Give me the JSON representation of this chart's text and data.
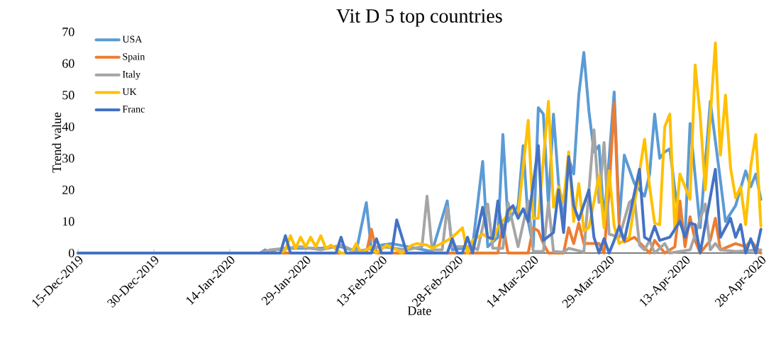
{
  "chart_data": {
    "type": "line",
    "title": "Vit D 5 top countries",
    "xlabel": "Date",
    "ylabel": "Trend value",
    "xlim": [
      "2019-12-15",
      "2020-04-28"
    ],
    "xticks": [
      {
        "value": "2019-12-15",
        "label": "15-Dec-2019"
      },
      {
        "value": "2019-12-30",
        "label": "30-Dec-2019"
      },
      {
        "value": "2020-01-14",
        "label": "14-Jan-2020"
      },
      {
        "value": "2020-01-29",
        "label": "29-Jan-2020"
      },
      {
        "value": "2020-02-13",
        "label": "13-Feb-2020"
      },
      {
        "value": "2020-02-28",
        "label": "28-Feb-2020"
      },
      {
        "value": "2020-03-14",
        "label": "14-Mar-2020"
      },
      {
        "value": "2020-03-29",
        "label": "29-Mar-2020"
      },
      {
        "value": "2020-04-13",
        "label": "13-Apr-2020"
      },
      {
        "value": "2020-04-28",
        "label": "28-Apr-2020"
      }
    ],
    "ylim": [
      0,
      70
    ],
    "yticks": [
      0,
      10,
      20,
      30,
      40,
      50,
      60,
      70
    ],
    "legend": "top left",
    "series": [
      {
        "name": "USA",
        "color": "#5b9bd5",
        "x": [
          "2019-12-15",
          "2020-01-20",
          "2020-01-21",
          "2020-01-22",
          "2020-01-23",
          "2020-01-25",
          "2020-01-29",
          "2020-02-01",
          "2020-02-05",
          "2020-02-08",
          "2020-02-10",
          "2020-02-11",
          "2020-02-13",
          "2020-02-15",
          "2020-02-23",
          "2020-02-26",
          "2020-02-27",
          "2020-03-02",
          "2020-03-04",
          "2020-03-05",
          "2020-03-07",
          "2020-03-08",
          "2020-03-09",
          "2020-03-11",
          "2020-03-12",
          "2020-03-13",
          "2020-03-14",
          "2020-03-15",
          "2020-03-16",
          "2020-03-17",
          "2020-03-18",
          "2020-03-19",
          "2020-03-20",
          "2020-03-21",
          "2020-03-22",
          "2020-03-23",
          "2020-03-24",
          "2020-03-25",
          "2020-03-26",
          "2020-03-27",
          "2020-03-28",
          "2020-03-29",
          "2020-03-30",
          "2020-03-31",
          "2020-04-01",
          "2020-04-03",
          "2020-04-05",
          "2020-04-06",
          "2020-04-07",
          "2020-04-08",
          "2020-04-09",
          "2020-04-10",
          "2020-04-11",
          "2020-04-12",
          "2020-04-13",
          "2020-04-14",
          "2020-04-16",
          "2020-04-18",
          "2020-04-20",
          "2020-04-21",
          "2020-04-23",
          "2020-04-25",
          "2020-04-26",
          "2020-04-27",
          "2020-04-28"
        ],
        "values": [
          0,
          0,
          1,
          0,
          1,
          1.5,
          1.5,
          1.5,
          2,
          0.5,
          16,
          1,
          2.5,
          3,
          0.5,
          16.5,
          1,
          2,
          29,
          2,
          5,
          37.5,
          10,
          15,
          34,
          10,
          2,
          46,
          44,
          15,
          44,
          22,
          10,
          30,
          25,
          50,
          63.5,
          45,
          32,
          34,
          10,
          30,
          51,
          10,
          31,
          22,
          18,
          25,
          44,
          30,
          32,
          33,
          20,
          10,
          5,
          41,
          8,
          48,
          23,
          10,
          15,
          26,
          21,
          25,
          17
        ]
      },
      {
        "name": "Spain",
        "color": "#ed7d31",
        "x": [
          "2019-12-15",
          "2020-02-10",
          "2020-02-11",
          "2020-02-12",
          "2020-03-07",
          "2020-03-08",
          "2020-03-09",
          "2020-03-13",
          "2020-03-14",
          "2020-03-15",
          "2020-03-16",
          "2020-03-17",
          "2020-03-20",
          "2020-03-21",
          "2020-03-22",
          "2020-03-23",
          "2020-03-24",
          "2020-03-27",
          "2020-03-28",
          "2020-03-29",
          "2020-03-30",
          "2020-03-31",
          "2020-04-01",
          "2020-04-03",
          "2020-04-06",
          "2020-04-07",
          "2020-04-09",
          "2020-04-11",
          "2020-04-12",
          "2020-04-13",
          "2020-04-14",
          "2020-04-15",
          "2020-04-16",
          "2020-04-18",
          "2020-04-19",
          "2020-04-20",
          "2020-04-23",
          "2020-04-25",
          "2020-04-26",
          "2020-04-28"
        ],
        "values": [
          0,
          0,
          7.5,
          0,
          0,
          9,
          0,
          0,
          8,
          7,
          3,
          0,
          0,
          8,
          3,
          9.5,
          3,
          3,
          0,
          20,
          47.5,
          8,
          3.5,
          5,
          0,
          4,
          0,
          2,
          16.5,
          2,
          11.5,
          4,
          0,
          4,
          11,
          1,
          3,
          2,
          4,
          0
        ]
      },
      {
        "name": "Italy",
        "color": "#a5a5a5",
        "x": [
          "2019-12-15",
          "2020-01-20",
          "2020-01-22",
          "2020-01-25",
          "2020-01-28",
          "2020-02-01",
          "2020-02-05",
          "2020-02-08",
          "2020-02-13",
          "2020-02-18",
          "2020-02-21",
          "2020-02-22",
          "2020-02-23",
          "2020-02-25",
          "2020-02-26",
          "2020-02-27",
          "2020-03-02",
          "2020-03-03",
          "2020-03-05",
          "2020-03-06",
          "2020-03-08",
          "2020-03-09",
          "2020-03-11",
          "2020-03-13",
          "2020-03-14",
          "2020-03-16",
          "2020-03-17",
          "2020-03-18",
          "2020-03-20",
          "2020-03-21",
          "2020-03-24",
          "2020-03-26",
          "2020-03-27",
          "2020-03-28",
          "2020-03-29",
          "2020-03-31",
          "2020-04-02",
          "2020-04-03",
          "2020-04-04",
          "2020-04-05",
          "2020-04-06",
          "2020-04-07",
          "2020-04-09",
          "2020-04-10",
          "2020-04-14",
          "2020-04-17",
          "2020-04-18",
          "2020-04-19",
          "2020-04-20",
          "2020-04-23",
          "2020-04-28"
        ],
        "values": [
          0,
          0,
          1,
          1.5,
          2,
          1,
          2.5,
          0.5,
          2,
          1,
          2,
          18,
          1,
          1,
          14.5,
          2,
          2,
          1,
          15.5,
          1.5,
          1.5,
          16,
          2,
          16.5,
          0.5,
          0.5,
          16,
          0.5,
          0.3,
          1.5,
          0.3,
          39,
          16,
          35,
          6,
          5,
          16,
          17.5,
          2.5,
          1,
          4,
          0,
          3,
          0,
          1,
          15.5,
          1,
          3,
          1,
          0.5,
          1
        ]
      },
      {
        "name": "UK",
        "color": "#ffc000",
        "x": [
          "2019-12-15",
          "2020-01-24",
          "2020-01-25",
          "2020-01-26",
          "2020-01-27",
          "2020-01-28",
          "2020-01-29",
          "2020-01-30",
          "2020-01-31",
          "2020-02-01",
          "2020-02-02",
          "2020-02-03",
          "2020-02-05",
          "2020-02-07",
          "2020-02-08",
          "2020-02-09",
          "2020-02-11",
          "2020-02-12",
          "2020-02-14",
          "2020-02-16",
          "2020-02-17",
          "2020-02-19",
          "2020-02-20",
          "2020-02-22",
          "2020-02-23",
          "2020-02-26",
          "2020-02-27",
          "2020-02-29",
          "2020-03-01",
          "2020-03-02",
          "2020-03-04",
          "2020-03-06",
          "2020-03-07",
          "2020-03-10",
          "2020-03-11",
          "2020-03-13",
          "2020-03-14",
          "2020-03-15",
          "2020-03-17",
          "2020-03-18",
          "2020-03-19",
          "2020-03-20",
          "2020-03-21",
          "2020-03-22",
          "2020-03-23",
          "2020-03-24",
          "2020-03-25",
          "2020-03-27",
          "2020-03-28",
          "2020-03-29",
          "2020-03-30",
          "2020-03-31",
          "2020-04-02",
          "2020-04-05",
          "2020-04-06",
          "2020-04-07",
          "2020-04-08",
          "2020-04-09",
          "2020-04-10",
          "2020-04-11",
          "2020-04-12",
          "2020-04-14",
          "2020-04-15",
          "2020-04-16",
          "2020-04-17",
          "2020-04-19",
          "2020-04-20",
          "2020-04-21",
          "2020-04-22",
          "2020-04-23",
          "2020-04-24",
          "2020-04-25",
          "2020-04-26",
          "2020-04-27",
          "2020-04-28"
        ],
        "values": [
          0,
          0,
          1,
          5.5,
          1.5,
          5,
          2,
          5,
          2,
          5.5,
          1.5,
          2.5,
          0,
          0,
          3,
          0,
          2,
          0,
          2.5,
          1,
          0,
          2.5,
          3,
          2.5,
          1.5,
          4,
          5,
          8,
          0,
          4,
          6,
          4,
          8,
          14.5,
          12,
          42,
          11,
          11,
          48,
          14.5,
          21,
          16,
          32,
          10,
          22,
          7,
          8,
          24.5,
          8,
          26,
          8.5,
          3,
          5,
          36,
          21,
          9.5,
          9,
          40,
          44,
          7,
          25,
          17,
          59.5,
          43.5,
          20,
          66.5,
          31,
          50,
          27,
          17.5,
          21,
          9,
          27.5,
          37.5,
          8.5
        ]
      },
      {
        "name": "Franc",
        "color": "#4472c4",
        "x": [
          "2019-12-15",
          "2020-01-24",
          "2020-01-25",
          "2020-01-26",
          "2020-02-04",
          "2020-02-05",
          "2020-02-06",
          "2020-02-11",
          "2020-02-12",
          "2020-02-13",
          "2020-02-15",
          "2020-02-16",
          "2020-02-18",
          "2020-02-26",
          "2020-02-27",
          "2020-02-28",
          "2020-02-29",
          "2020-03-01",
          "2020-03-02",
          "2020-03-04",
          "2020-03-05",
          "2020-03-06",
          "2020-03-07",
          "2020-03-08",
          "2020-03-09",
          "2020-03-10",
          "2020-03-11",
          "2020-03-12",
          "2020-03-13",
          "2020-03-15",
          "2020-03-16",
          "2020-03-18",
          "2020-03-19",
          "2020-03-20",
          "2020-03-21",
          "2020-03-22",
          "2020-03-23",
          "2020-03-25",
          "2020-03-26",
          "2020-03-27",
          "2020-03-28",
          "2020-03-29",
          "2020-03-30",
          "2020-03-31",
          "2020-04-01",
          "2020-04-04",
          "2020-04-05",
          "2020-04-06",
          "2020-04-07",
          "2020-04-08",
          "2020-04-10",
          "2020-04-12",
          "2020-04-13",
          "2020-04-14",
          "2020-04-15",
          "2020-04-16",
          "2020-04-19",
          "2020-04-20",
          "2020-04-22",
          "2020-04-23",
          "2020-04-24",
          "2020-04-25",
          "2020-04-26",
          "2020-04-27",
          "2020-04-28"
        ],
        "values": [
          0,
          0,
          5.5,
          0,
          0,
          5,
          0,
          0,
          4.5,
          0,
          0,
          10.5,
          0,
          0,
          4.5,
          0,
          0,
          5,
          0,
          14.5,
          5,
          4.5,
          16.5,
          5,
          13.5,
          15,
          11,
          14,
          10,
          34,
          4,
          6.5,
          20,
          6.5,
          30.5,
          15,
          10.5,
          20,
          5,
          0,
          4.5,
          0,
          4,
          8.5,
          4,
          26.5,
          5,
          4,
          8.5,
          4,
          5,
          10,
          5,
          9.5,
          9,
          0,
          26.5,
          5,
          11,
          5,
          9,
          0,
          4.5,
          0,
          7.5
        ]
      }
    ]
  }
}
